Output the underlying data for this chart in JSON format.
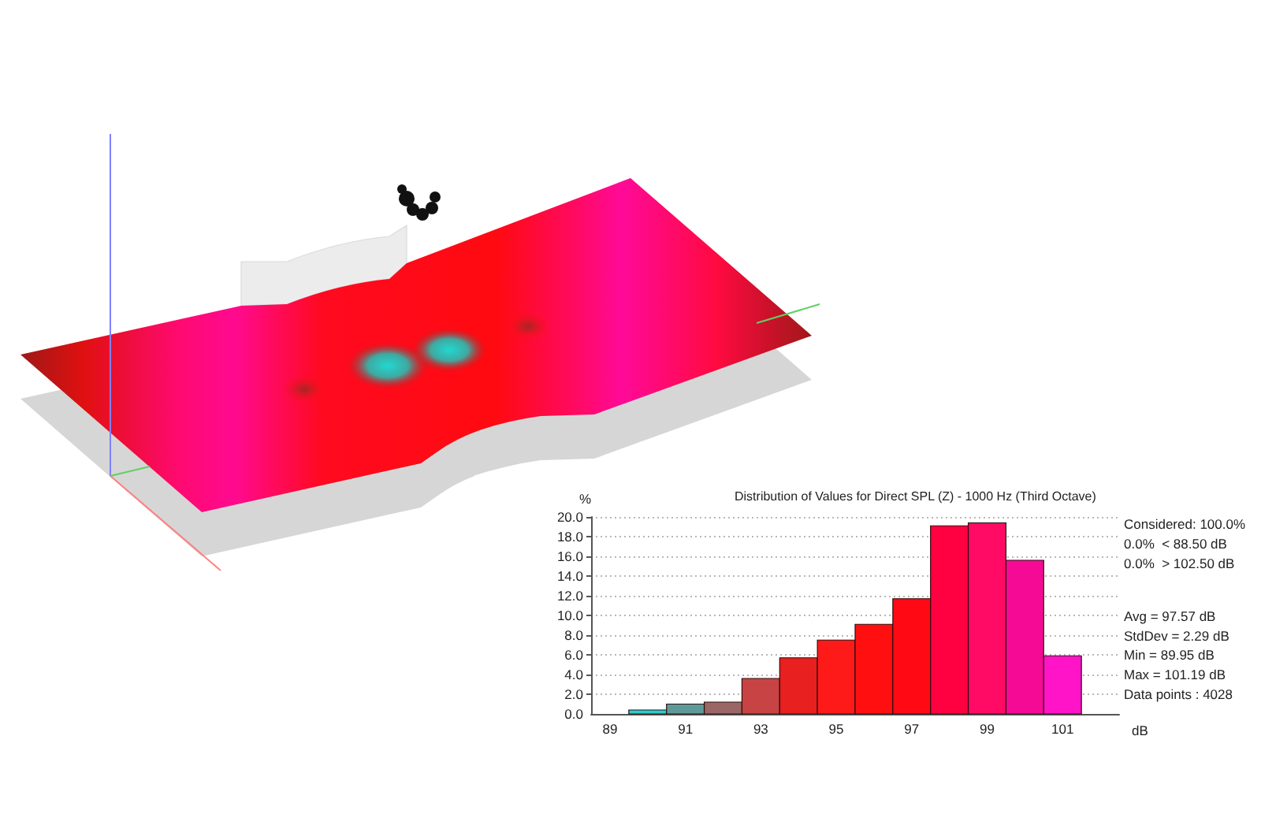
{
  "chart_data": {
    "type": "histogram",
    "title": "Distribution of Values for Direct SPL (Z) - 1000 Hz (Third Octave)",
    "xlabel": "dB",
    "ylabel": "%",
    "bins": [
      89.5,
      90.5,
      91.5,
      92.5,
      93.5,
      94.5,
      95.5,
      96.5,
      97.5,
      98.5,
      99.5,
      100.5,
      101.5
    ],
    "values": [
      0.4,
      1.0,
      1.2,
      3.6,
      5.7,
      7.5,
      9.1,
      11.7,
      19.1,
      19.4,
      15.6,
      5.9
    ],
    "colors": [
      "#2ecccc",
      "#5f9a9a",
      "#9a6666",
      "#c84444",
      "#e82020",
      "#ff1a1a",
      "#ff0f0f",
      "#ff0a14",
      "#ff0040",
      "#ff0a64",
      "#f50a96",
      "#ff14c8"
    ],
    "xlim": [
      88.5,
      102.5
    ],
    "xticks": [
      89,
      91,
      93,
      95,
      97,
      99,
      101
    ],
    "ylim": [
      0,
      20
    ],
    "yticks": [
      {
        "value": 0,
        "label": "0.0"
      },
      {
        "value": 2,
        "label": "2.0"
      },
      {
        "value": 4,
        "label": "4.0"
      },
      {
        "value": 6,
        "label": "6.0"
      },
      {
        "value": 8,
        "label": "8.0"
      },
      {
        "value": 10,
        "label": "10.0"
      },
      {
        "value": 12,
        "label": "12.0"
      },
      {
        "value": 14,
        "label": "14.0"
      },
      {
        "value": 16,
        "label": "16.0"
      },
      {
        "value": 18,
        "label": "18.0"
      },
      {
        "value": 20,
        "label": "20.0"
      }
    ],
    "grid": "y",
    "annotations": [
      "Considered: 100.0%",
      "0.0%  < 88.50 dB",
      "0.0%  > 102.50 dB",
      "Avg = 97.57 dB",
      "StdDev = 2.29 dB",
      "Min = 89.95 dB",
      "Max = 101.19 dB",
      "Data points : 4028"
    ]
  }
}
